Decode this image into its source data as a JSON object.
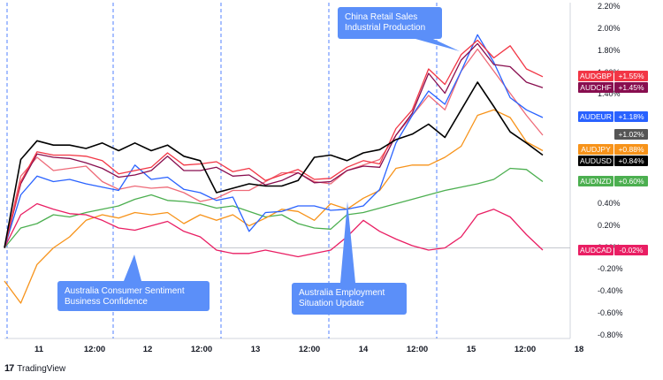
{
  "chart_data": {
    "type": "line",
    "title": "",
    "xlabel": "",
    "ylabel": "",
    "x_labels": [
      "11",
      "12:00",
      "12",
      "12:00",
      "13",
      "12:00",
      "14",
      "12:00",
      "15",
      "12:00",
      "18"
    ],
    "y_ticks": [
      "2.20%",
      "2.00%",
      "1.80%",
      "1.60%",
      "1.40%",
      "0.40%",
      "0.20%",
      "0.00%",
      "-0.20%",
      "-0.40%",
      "-0.60%",
      "-0.80%"
    ],
    "ylim": [
      -0.82,
      2.22
    ],
    "grid": false,
    "legend_placement": "right",
    "colors": {
      "AUDGBP": "#f23645",
      "AUDCHF": "#880e4f",
      "AUDEUR": "#2962ff",
      "AUDUSD": "#000000",
      "AUDJPY": "#f7931a",
      "AUDNZD": "#4caf50",
      "AUDCAD": "#e91e63",
      "unlabeled": "#ee6a78",
      "event_line": "#2962ff",
      "annotation": "#5b8ff9",
      "badge_gray": "#555555"
    },
    "series": [
      {
        "name": "AUDGBP",
        "values": [
          0.0,
          0.6,
          0.87,
          0.84,
          0.84,
          0.83,
          0.79,
          0.67,
          0.7,
          0.73,
          0.86,
          0.75,
          0.76,
          0.78,
          0.69,
          0.72,
          0.61,
          0.66,
          0.71,
          0.62,
          0.63,
          0.73,
          0.79,
          0.76,
          1.08,
          1.25,
          1.62,
          1.48,
          1.75,
          1.88,
          1.72,
          1.83,
          1.62,
          1.55
        ]
      },
      {
        "name": "AUDCHF",
        "values": [
          0.0,
          0.58,
          0.85,
          0.82,
          0.81,
          0.77,
          0.72,
          0.64,
          0.66,
          0.7,
          0.83,
          0.7,
          0.7,
          0.73,
          0.65,
          0.66,
          0.57,
          0.61,
          0.68,
          0.59,
          0.6,
          0.7,
          0.74,
          0.73,
          1.02,
          1.22,
          1.58,
          1.4,
          1.7,
          1.85,
          1.66,
          1.64,
          1.5,
          1.45
        ]
      },
      {
        "name": "AUDEUR",
        "values": [
          0.0,
          0.48,
          0.65,
          0.6,
          0.62,
          0.58,
          0.55,
          0.52,
          0.75,
          0.62,
          0.64,
          0.53,
          0.5,
          0.43,
          0.46,
          0.15,
          0.32,
          0.33,
          0.38,
          0.38,
          0.34,
          0.35,
          0.38,
          0.53,
          0.95,
          1.2,
          1.42,
          1.3,
          1.6,
          1.93,
          1.68,
          1.36,
          1.25,
          1.18
        ]
      },
      {
        "name": "AUDUSD",
        "values": [
          0.0,
          0.8,
          0.97,
          0.93,
          0.93,
          0.9,
          0.95,
          0.88,
          0.95,
          0.88,
          0.93,
          0.83,
          0.79,
          0.5,
          0.54,
          0.58,
          0.56,
          0.56,
          0.61,
          0.82,
          0.84,
          0.79,
          0.86,
          0.89,
          0.98,
          1.03,
          1.12,
          1.0,
          1.25,
          1.5,
          1.28,
          1.05,
          0.95,
          0.84
        ]
      },
      {
        "name": "AUDJPY",
        "values": [
          -0.3,
          -0.5,
          -0.15,
          0.0,
          0.1,
          0.25,
          0.3,
          0.27,
          0.32,
          0.3,
          0.32,
          0.22,
          0.3,
          0.25,
          0.3,
          0.2,
          0.27,
          0.35,
          0.33,
          0.25,
          0.4,
          0.35,
          0.45,
          0.52,
          0.72,
          0.75,
          0.75,
          0.82,
          0.92,
          1.2,
          1.25,
          1.18,
          0.96,
          0.88
        ]
      },
      {
        "name": "AUDNZD",
        "values": [
          0.0,
          0.18,
          0.22,
          0.3,
          0.28,
          0.32,
          0.35,
          0.38,
          0.44,
          0.48,
          0.43,
          0.42,
          0.4,
          0.36,
          0.38,
          0.33,
          0.28,
          0.3,
          0.22,
          0.18,
          0.17,
          0.3,
          0.32,
          0.36,
          0.4,
          0.44,
          0.48,
          0.52,
          0.55,
          0.58,
          0.62,
          0.72,
          0.71,
          0.6
        ]
      },
      {
        "name": "AUDCAD",
        "values": [
          0.0,
          0.3,
          0.4,
          0.35,
          0.31,
          0.3,
          0.25,
          0.18,
          0.16,
          0.2,
          0.24,
          0.15,
          0.1,
          -0.02,
          -0.05,
          -0.05,
          -0.02,
          -0.05,
          -0.08,
          -0.05,
          -0.02,
          0.1,
          0.25,
          0.15,
          0.08,
          0.02,
          -0.02,
          0.0,
          0.1,
          0.3,
          0.35,
          0.28,
          0.12,
          -0.02
        ]
      },
      {
        "name": "",
        "values": [
          0.0,
          0.65,
          0.82,
          0.7,
          0.72,
          0.74,
          0.6,
          0.53,
          0.56,
          0.54,
          0.55,
          0.5,
          0.42,
          0.45,
          0.52,
          0.52,
          0.6,
          0.68,
          0.68,
          0.6,
          0.58,
          0.7,
          0.75,
          0.8,
          1.02,
          1.2,
          1.38,
          1.25,
          1.6,
          1.8,
          1.6,
          1.4,
          1.2,
          1.02
        ]
      }
    ],
    "badges": [
      {
        "name": "AUDGBP",
        "label": "AUDGBP",
        "value": "+1.55%"
      },
      {
        "name": "AUDCHF",
        "label": "AUDCHF",
        "value": "+1.45%"
      },
      {
        "name": "AUDEUR",
        "label": "AUDEUR",
        "value": "+1.18%"
      },
      {
        "name": "unlabeled",
        "label": "",
        "value": "+1.02%"
      },
      {
        "name": "AUDJPY",
        "label": "AUDJPY",
        "value": "+0.88%"
      },
      {
        "name": "AUDUSD",
        "label": "AUDUSD",
        "value": "+0.84%"
      },
      {
        "name": "AUDNZD",
        "label": "AUDNZD",
        "value": "+0.60%"
      },
      {
        "name": "AUDCAD",
        "label": "AUDCAD",
        "value": "-0.02%"
      }
    ],
    "annotations": [
      {
        "lines": [
          "China Retail Sales",
          "Industrial Production"
        ]
      },
      {
        "lines": [
          "Australia Consumer Sentiment",
          "Business Confidence"
        ]
      },
      {
        "lines": [
          "Australia Employment",
          "Situation Update"
        ]
      }
    ]
  },
  "branding": {
    "logo": "17",
    "name": "TradingView"
  }
}
